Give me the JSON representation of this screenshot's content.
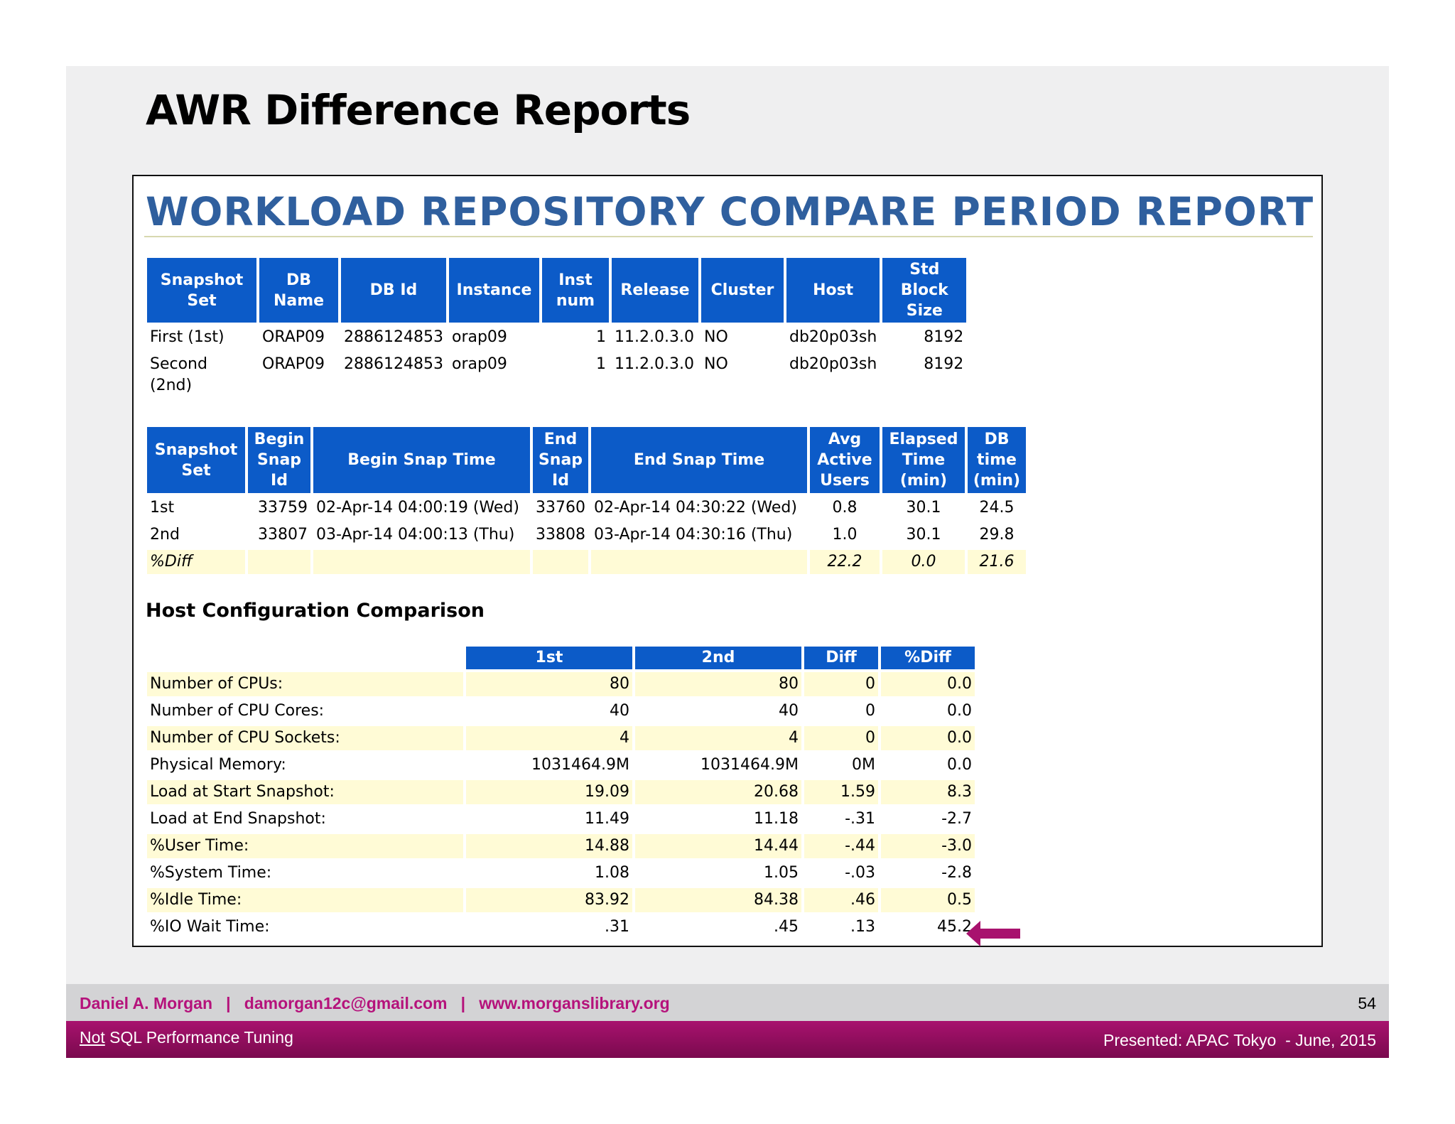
{
  "slide": {
    "title": "AWR Difference Reports",
    "report_title": "WORKLOAD REPOSITORY COMPARE PERIOD REPORT",
    "section_title": "Host Configuration Comparison"
  },
  "db_table": {
    "headers": [
      "Snapshot Set",
      "DB Name",
      "DB Id",
      "Instance",
      "Inst num",
      "Release",
      "Cluster",
      "Host",
      "Std Block Size"
    ],
    "rows": [
      [
        "First (1st)",
        "ORAP09",
        "2886124853",
        "orap09",
        "1",
        "11.2.0.3.0",
        "NO",
        "db20p03sh",
        "8192"
      ],
      [
        "Second (2nd)",
        "ORAP09",
        "2886124853",
        "orap09",
        "1",
        "11.2.0.3.0",
        "NO",
        "db20p03sh",
        "8192"
      ]
    ]
  },
  "snap_table": {
    "headers": [
      "Snapshot Set",
      "Begin Snap Id",
      "Begin Snap Time",
      "End Snap Id",
      "End Snap Time",
      "Avg Active Users",
      "Elapsed Time (min)",
      "DB time (min)"
    ],
    "rows": [
      [
        "1st",
        "33759",
        "02-Apr-14 04:00:19 (Wed)",
        "33760",
        "02-Apr-14 04:30:22 (Wed)",
        "0.8",
        "30.1",
        "24.5"
      ],
      [
        "2nd",
        "33807",
        "03-Apr-14 04:00:13 (Thu)",
        "33808",
        "03-Apr-14 04:30:16 (Thu)",
        "1.0",
        "30.1",
        "29.8"
      ]
    ],
    "diff_row": [
      "%Diff",
      "",
      "",
      "",
      "",
      "22.2",
      "0.0",
      "21.6"
    ]
  },
  "host_table": {
    "headers": [
      "",
      "1st",
      "2nd",
      "Diff",
      "%Diff"
    ],
    "rows": [
      [
        "Number of CPUs:",
        "80",
        "80",
        "0",
        "0.0"
      ],
      [
        "Number of CPU Cores:",
        "40",
        "40",
        "0",
        "0.0"
      ],
      [
        "Number of CPU Sockets:",
        "4",
        "4",
        "0",
        "0.0"
      ],
      [
        "Physical Memory:",
        "1031464.9M",
        "1031464.9M",
        "0M",
        "0.0"
      ],
      [
        "Load at Start Snapshot:",
        "19.09",
        "20.68",
        "1.59",
        "8.3"
      ],
      [
        "Load at End Snapshot:",
        "11.49",
        "11.18",
        "-.31",
        "-2.7"
      ],
      [
        "%User Time:",
        "14.88",
        "14.44",
        "-.44",
        "-3.0"
      ],
      [
        "%System Time:",
        "1.08",
        "1.05",
        "-.03",
        "-2.8"
      ],
      [
        "%Idle Time:",
        "83.92",
        "84.38",
        ".46",
        "0.5"
      ],
      [
        "%IO Wait Time:",
        ".31",
        ".45",
        ".13",
        "45.2"
      ]
    ]
  },
  "footer": {
    "contact": "Daniel A. Morgan   |   damorgan12c@gmail.com   |   www.morganslibrary.org",
    "page_number": "54",
    "not_word": "Not",
    "subtitle_rest": " SQL Performance Tuning",
    "presented": "Presented: APAC Tokyo  - June, 2015"
  },
  "colors": {
    "header_blue": "#0c5bc8",
    "title_blue": "#2f5f9e",
    "highlight_yellow": "#fffbd6",
    "accent_magenta": "#a8126e"
  },
  "icons": {
    "arrow": "left-arrow-icon"
  }
}
